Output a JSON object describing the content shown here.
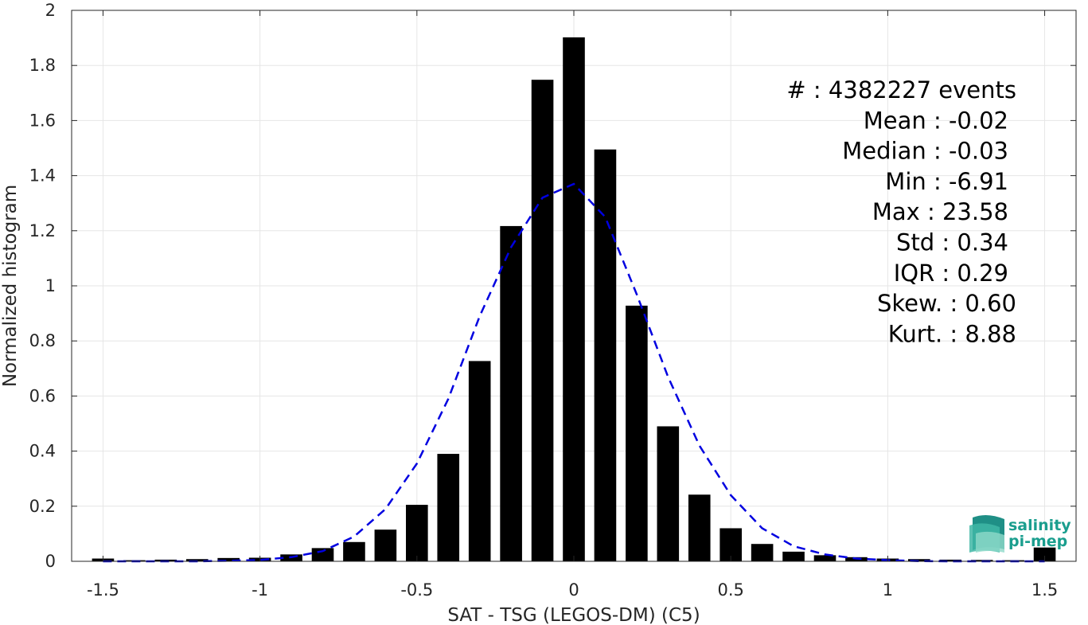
{
  "chart_data": {
    "type": "bar",
    "xlabel": "SAT - TSG (LEGOS-DM) (C5)",
    "ylabel": "Normalized histogram",
    "xlim": [
      -1.6,
      1.6
    ],
    "ylim": [
      0,
      2
    ],
    "xticks": [
      -1.5,
      -1,
      -0.5,
      0,
      0.5,
      1,
      1.5
    ],
    "xtick_labels": [
      "-1.5",
      "-1",
      "-0.5",
      "0",
      "0.5",
      "1",
      "1.5"
    ],
    "yticks": [
      0,
      0.2,
      0.4,
      0.6,
      0.8,
      1,
      1.2,
      1.4,
      1.6,
      1.8,
      2
    ],
    "ytick_labels": [
      "0",
      "0.2",
      "0.4",
      "0.6",
      "0.8",
      "1",
      "1.2",
      "1.4",
      "1.6",
      "1.8",
      "2"
    ],
    "grid": true,
    "bin_width": 0.1,
    "bar_color": "#000000",
    "x": [
      -1.5,
      -1.4,
      -1.3,
      -1.2,
      -1.1,
      -1.0,
      -0.9,
      -0.8,
      -0.7,
      -0.6,
      -0.5,
      -0.4,
      -0.3,
      -0.2,
      -0.1,
      0.0,
      0.1,
      0.2,
      0.3,
      0.4,
      0.5,
      0.6,
      0.7,
      0.8,
      0.9,
      1.0,
      1.1,
      1.2,
      1.3,
      1.4,
      1.5
    ],
    "values": [
      0.01,
      0.004,
      0.006,
      0.008,
      0.012,
      0.013,
      0.025,
      0.048,
      0.07,
      0.115,
      0.205,
      0.39,
      0.727,
      1.217,
      1.748,
      1.902,
      1.495,
      0.928,
      0.49,
      0.242,
      0.12,
      0.063,
      0.035,
      0.022,
      0.015,
      0.01,
      0.008,
      0.006,
      0.005,
      0.004,
      0.05
    ],
    "fit_curve": {
      "color": "#0000e0",
      "style": "dashed",
      "x": [
        -1.5,
        -1.4,
        -1.3,
        -1.2,
        -1.1,
        -1.0,
        -0.9,
        -0.8,
        -0.7,
        -0.6,
        -0.5,
        -0.4,
        -0.3,
        -0.2,
        -0.1,
        0.0,
        0.1,
        0.2,
        0.3,
        0.4,
        0.5,
        0.6,
        0.7,
        0.8,
        0.9,
        1.0,
        1.1,
        1.2,
        1.3,
        1.4,
        1.5
      ],
      "y": [
        0.0,
        0.0,
        0.0,
        0.0,
        0.002,
        0.005,
        0.015,
        0.037,
        0.09,
        0.19,
        0.355,
        0.59,
        0.89,
        1.14,
        1.32,
        1.37,
        1.25,
        0.97,
        0.67,
        0.42,
        0.24,
        0.12,
        0.055,
        0.025,
        0.01,
        0.004,
        0.001,
        0.0,
        0.0,
        0.0,
        0.0
      ]
    },
    "annotations": [
      {
        "label": "#",
        "value": ": 4382227 events"
      },
      {
        "label": "Mean",
        "value": ": -0.02"
      },
      {
        "label": "Median",
        "value": ": -0.03"
      },
      {
        "label": "Min",
        "value": ": -6.91"
      },
      {
        "label": "Max",
        "value": ": 23.58"
      },
      {
        "label": "Std",
        "value": ": 0.34"
      },
      {
        "label": "IQR",
        "value": ": 0.29"
      },
      {
        "label": "Skew.",
        "value": ": 0.60"
      },
      {
        "label": "Kurt.",
        "value": ": 8.88"
      }
    ]
  },
  "logo": {
    "line1": "salinity",
    "line2": "pi-mep",
    "color": "#1a9e8e"
  }
}
